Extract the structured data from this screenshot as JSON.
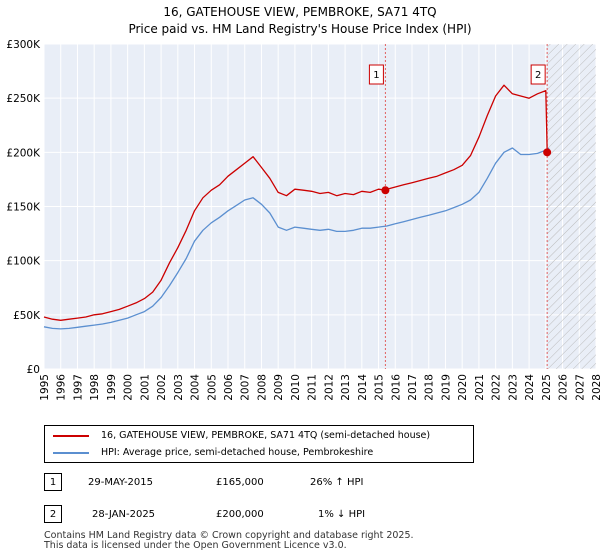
{
  "chart_data": {
    "type": "line",
    "title": "16, GATEHOUSE VIEW, PEMBROKE, SA71 4TQ",
    "subtitle": "Price paid vs. HM Land Registry's House Price Index (HPI)",
    "xlim": [
      1995,
      2028
    ],
    "ylim": [
      0,
      300000
    ],
    "y_ticks": [
      0,
      50000,
      100000,
      150000,
      200000,
      250000,
      300000
    ],
    "y_tick_labels": [
      "£0",
      "£50K",
      "£100K",
      "£150K",
      "£200K",
      "£250K",
      "£300K"
    ],
    "x_ticks": [
      1995,
      1996,
      1997,
      1998,
      1999,
      2000,
      2001,
      2002,
      2003,
      2004,
      2005,
      2006,
      2007,
      2008,
      2009,
      2010,
      2011,
      2012,
      2013,
      2014,
      2015,
      2016,
      2017,
      2018,
      2019,
      2020,
      2021,
      2022,
      2023,
      2024,
      2025,
      2026,
      2027,
      2028
    ],
    "grid": true,
    "colors": {
      "property": "#cc0000",
      "hpi": "#5b8fd0",
      "event": "#e06060",
      "hatch": "#bbbbbb"
    },
    "series": [
      {
        "name": "16, GATEHOUSE VIEW, PEMBROKE, SA71 4TQ (semi-detached house)",
        "x": [
          1995.0,
          1995.5,
          1996.0,
          1996.5,
          1997.0,
          1997.5,
          1998.0,
          1998.5,
          1999.0,
          1999.5,
          2000.0,
          2000.5,
          2001.0,
          2001.5,
          2002.0,
          2002.5,
          2003.0,
          2003.5,
          2004.0,
          2004.5,
          2005.0,
          2005.5,
          2006.0,
          2006.5,
          2007.0,
          2007.5,
          2008.0,
          2008.5,
          2009.0,
          2009.5,
          2010.0,
          2010.5,
          2011.0,
          2011.5,
          2012.0,
          2012.5,
          2013.0,
          2013.5,
          2014.0,
          2014.5,
          2015.0,
          2015.41,
          2015.5,
          2016.0,
          2016.5,
          2017.0,
          2017.5,
          2018.0,
          2018.5,
          2019.0,
          2019.5,
          2020.0,
          2020.5,
          2021.0,
          2021.5,
          2022.0,
          2022.5,
          2023.0,
          2023.5,
          2024.0,
          2024.5,
          2025.0,
          2025.08,
          2025.2
        ],
        "values": [
          48000,
          46000,
          45000,
          46000,
          47000,
          48000,
          50000,
          51000,
          53000,
          55000,
          58000,
          61000,
          65000,
          71000,
          82000,
          98000,
          112000,
          128000,
          146000,
          158000,
          165000,
          170000,
          178000,
          184000,
          190000,
          196000,
          186000,
          176000,
          163000,
          160000,
          166000,
          165000,
          164000,
          162000,
          163000,
          160000,
          162000,
          161000,
          164000,
          163000,
          166000,
          165000,
          166000,
          168000,
          170000,
          172000,
          174000,
          176000,
          178000,
          181000,
          184000,
          188000,
          197000,
          214000,
          234000,
          252000,
          262000,
          254000,
          252000,
          250000,
          254000,
          257000,
          200000,
          200000
        ]
      },
      {
        "name": "HPI: Average price, semi-detached house, Pembrokeshire",
        "x": [
          1995.0,
          1995.5,
          1996.0,
          1996.5,
          1997.0,
          1997.5,
          1998.0,
          1998.5,
          1999.0,
          1999.5,
          2000.0,
          2000.5,
          2001.0,
          2001.5,
          2002.0,
          2002.5,
          2003.0,
          2003.5,
          2004.0,
          2004.5,
          2005.0,
          2005.5,
          2006.0,
          2006.5,
          2007.0,
          2007.5,
          2008.0,
          2008.5,
          2009.0,
          2009.5,
          2010.0,
          2010.5,
          2011.0,
          2011.5,
          2012.0,
          2012.5,
          2013.0,
          2013.5,
          2014.0,
          2014.5,
          2015.0,
          2015.5,
          2016.0,
          2016.5,
          2017.0,
          2017.5,
          2018.0,
          2018.5,
          2019.0,
          2019.5,
          2020.0,
          2020.5,
          2021.0,
          2021.5,
          2022.0,
          2022.5,
          2023.0,
          2023.5,
          2024.0,
          2024.5,
          2025.0,
          2025.2
        ],
        "values": [
          39000,
          37500,
          37000,
          37500,
          38500,
          39500,
          40500,
          41500,
          43000,
          45000,
          47000,
          50000,
          53000,
          58000,
          66000,
          77000,
          89000,
          102000,
          118000,
          128000,
          135000,
          140000,
          146000,
          151000,
          156000,
          158000,
          152000,
          144000,
          131000,
          128000,
          131000,
          130000,
          129000,
          128000,
          129000,
          127000,
          127000,
          128000,
          130000,
          130000,
          131000,
          132000,
          134000,
          136000,
          138000,
          140000,
          142000,
          144000,
          146000,
          149000,
          152000,
          156000,
          163000,
          176000,
          190000,
          200000,
          204000,
          198000,
          198000,
          199000,
          202000,
          204000
        ]
      }
    ],
    "sales": [
      {
        "id": "1",
        "x": 2015.41,
        "value": 165000,
        "date": "29-MAY-2015",
        "price": "£165,000",
        "hpi": "26% ↑ HPI"
      },
      {
        "id": "2",
        "x": 2025.08,
        "value": 200000,
        "date": "28-JAN-2025",
        "price": "£200,000",
        "hpi": "1% ↓ HPI"
      }
    ],
    "hatch_from": 2025.08
  },
  "footer": {
    "line1": "Contains HM Land Registry data © Crown copyright and database right 2025.",
    "line2": "This data is licensed under the Open Government Licence v3.0."
  }
}
